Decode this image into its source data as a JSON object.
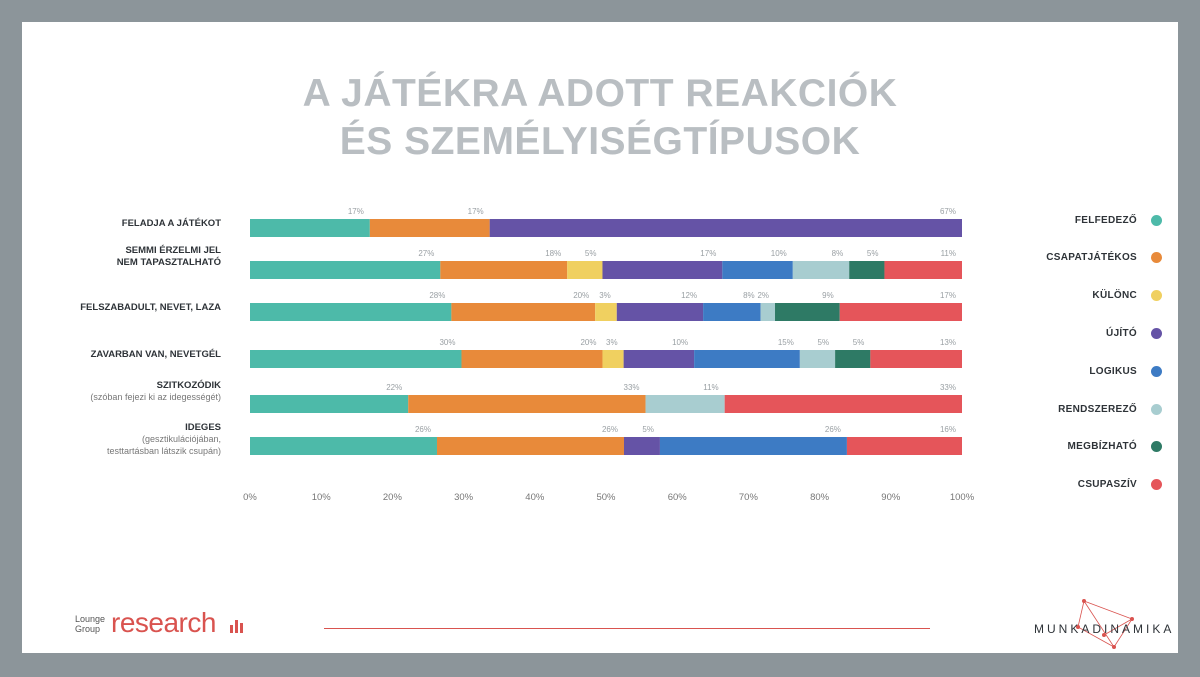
{
  "title": {
    "line1": "A JÁTÉKRA ADOTT REAKCIÓK",
    "line2": "ÉS SZEMÉLYISÉGTÍPUSOK"
  },
  "chart_data": {
    "type": "bar",
    "orientation": "horizontal",
    "stacked": true,
    "xlim": [
      0,
      100
    ],
    "x_ticks": [
      "0%",
      "10%",
      "20%",
      "30%",
      "40%",
      "50%",
      "60%",
      "70%",
      "80%",
      "90%",
      "100%"
    ],
    "grid": false,
    "legend_position": "right",
    "series": [
      {
        "name": "FELFEDEZŐ",
        "color": "#4dbaa9"
      },
      {
        "name": "CSAPATJÁTÉKOS",
        "color": "#e88a3a"
      },
      {
        "name": "KÜLÖNC",
        "color": "#f0d060"
      },
      {
        "name": "ÚJÍTÓ",
        "color": "#6553a6"
      },
      {
        "name": "LOGIKUS",
        "color": "#3d7bc4"
      },
      {
        "name": "RENDSZEREZŐ",
        "color": "#a8cdd0"
      },
      {
        "name": "MEGBÍZHATÓ",
        "color": "#2e7a65"
      },
      {
        "name": "CSUPASZÍV",
        "color": "#e5555a"
      }
    ],
    "rows": [
      {
        "label": "FELADJA A JÁTÉKOT",
        "sub": "",
        "values": [
          17,
          17,
          0,
          67,
          0,
          0,
          0,
          0
        ],
        "labels": [
          "17%",
          "17%",
          "",
          "67%",
          "",
          "",
          "",
          ""
        ]
      },
      {
        "label": "SEMMI ÉRZELMI JEL NEM TAPASZTALHATÓ",
        "sub": "",
        "line1": "SEMMI ÉRZELMI JEL",
        "line2": "NEM TAPASZTALHATÓ",
        "values": [
          27,
          18,
          5,
          17,
          10,
          8,
          5,
          11
        ],
        "labels": [
          "27%",
          "18%",
          "5%",
          "17%",
          "10%",
          "8%",
          "5%",
          "11%"
        ]
      },
      {
        "label": "FELSZABADULT, NEVET, LAZA",
        "sub": "",
        "values": [
          28,
          20,
          3,
          12,
          8,
          2,
          9,
          17
        ],
        "labels": [
          "28%",
          "20%",
          "3%",
          "12%",
          "8%",
          "2%",
          "9%",
          "17%"
        ]
      },
      {
        "label": "ZAVARBAN VAN, NEVETGÉL",
        "sub": "",
        "values": [
          30,
          20,
          3,
          10,
          15,
          5,
          5,
          13
        ],
        "labels": [
          "30%",
          "20%",
          "3%",
          "10%",
          "15%",
          "5%",
          "5%",
          "13%"
        ]
      },
      {
        "label": "SZITKOZÓDIK",
        "sub": "(szóban fejezi ki az idegességét)",
        "values": [
          22,
          33,
          0,
          0,
          0,
          11,
          0,
          33
        ],
        "labels": [
          "22%",
          "33%",
          "",
          "",
          "",
          "11%",
          "",
          "33%"
        ]
      },
      {
        "label": "IDEGES",
        "sub": "(gesztikulációjában,",
        "sub2": "testtartásban látszik csupán)",
        "values": [
          26,
          26,
          0,
          5,
          26,
          0,
          0,
          16
        ],
        "labels": [
          "26%",
          "26%",
          "",
          "5%",
          "26%",
          "",
          "",
          "16%"
        ]
      }
    ]
  },
  "footer": {
    "lounge": "Lounge",
    "group": "Group",
    "research": "research",
    "munkadinamika": "MUNKADINAMIKA"
  }
}
